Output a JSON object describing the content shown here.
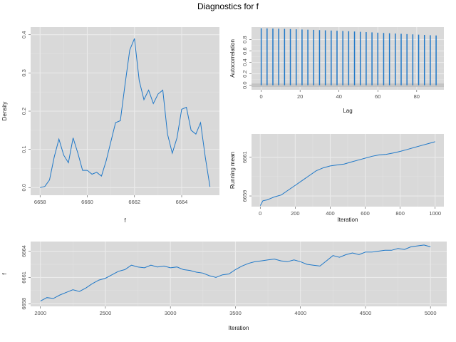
{
  "figure": {
    "title": "Diagnostics for f"
  },
  "colors": {
    "line": "#1f78c8",
    "panel": "#d9d9d9",
    "grid": "#ebebeb",
    "band": "#bdbdbd"
  },
  "chart_data": [
    {
      "id": "density",
      "type": "line",
      "title": "",
      "xlabel": "f",
      "ylabel": "Density",
      "xlim": [
        6657.6,
        6665.6
      ],
      "ylim": [
        -0.02,
        0.42
      ],
      "xticks": [
        6658,
        6660,
        6662,
        6664
      ],
      "yticks": [
        0.0,
        0.1,
        0.2,
        0.3,
        0.4
      ],
      "x": [
        6658.0,
        6658.2,
        6658.4,
        6658.6,
        6658.8,
        6659.0,
        6659.2,
        6659.4,
        6659.6,
        6659.8,
        6660.0,
        6660.2,
        6660.4,
        6660.6,
        6660.8,
        6661.0,
        6661.2,
        6661.4,
        6661.6,
        6661.8,
        6662.0,
        6662.2,
        6662.4,
        6662.6,
        6662.8,
        6663.0,
        6663.2,
        6663.4,
        6663.6,
        6663.8,
        6664.0,
        6664.2,
        6664.4,
        6664.6,
        6664.8,
        6665.0,
        6665.2
      ],
      "y": [
        0.0,
        0.003,
        0.02,
        0.08,
        0.127,
        0.085,
        0.065,
        0.13,
        0.09,
        0.045,
        0.045,
        0.035,
        0.04,
        0.03,
        0.07,
        0.12,
        0.17,
        0.175,
        0.27,
        0.36,
        0.39,
        0.28,
        0.23,
        0.255,
        0.22,
        0.245,
        0.255,
        0.14,
        0.09,
        0.13,
        0.205,
        0.21,
        0.15,
        0.14,
        0.17,
        0.08,
        0.002
      ]
    },
    {
      "id": "acf",
      "type": "bar",
      "title": "",
      "xlabel": "Lag",
      "ylabel": "Autocorrelation",
      "xlim": [
        -5,
        94
      ],
      "ylim": [
        -0.08,
        1.02
      ],
      "xticks": [
        0,
        20,
        40,
        60,
        80
      ],
      "yticks": [
        0.0,
        0.2,
        0.4,
        0.6,
        0.8
      ],
      "lags": [
        0,
        3,
        6,
        9,
        12,
        15,
        18,
        21,
        24,
        27,
        30,
        33,
        36,
        39,
        42,
        45,
        48,
        51,
        54,
        57,
        60,
        63,
        66,
        69,
        72,
        75,
        78,
        81,
        84,
        87,
        90
      ],
      "values": [
        1.0,
        0.997,
        0.994,
        0.991,
        0.988,
        0.985,
        0.981,
        0.977,
        0.974,
        0.971,
        0.967,
        0.963,
        0.959,
        0.955,
        0.951,
        0.947,
        0.942,
        0.937,
        0.932,
        0.927,
        0.922,
        0.917,
        0.912,
        0.907,
        0.902,
        0.897,
        0.892,
        0.887,
        0.882,
        0.877,
        0.873
      ],
      "band": [
        -0.03,
        0.03
      ]
    },
    {
      "id": "running-mean",
      "type": "line",
      "title": "",
      "xlabel": "Iteration",
      "ylabel": "Running mean",
      "xlim": [
        -50,
        1050
      ],
      "ylim": [
        6658.45,
        6662.2
      ],
      "xticks": [
        0,
        200,
        400,
        600,
        800,
        1000
      ],
      "yticks": [
        6659,
        6661
      ],
      "x": [
        0,
        15,
        40,
        80,
        120,
        160,
        200,
        240,
        280,
        320,
        360,
        400,
        440,
        480,
        520,
        560,
        600,
        640,
        680,
        720,
        760,
        800,
        840,
        880,
        920,
        960,
        1000
      ],
      "y": [
        6658.5,
        6658.75,
        6658.8,
        6658.95,
        6659.05,
        6659.3,
        6659.55,
        6659.8,
        6660.05,
        6660.3,
        6660.45,
        6660.55,
        6660.6,
        6660.65,
        6660.75,
        6660.85,
        6660.95,
        6661.05,
        6661.12,
        6661.15,
        6661.22,
        6661.3,
        6661.4,
        6661.5,
        6661.6,
        6661.7,
        6661.8
      ]
    },
    {
      "id": "trace",
      "type": "line",
      "title": "",
      "xlabel": "Iteration",
      "ylabel": "f",
      "xlim": [
        1925,
        5125
      ],
      "ylim": [
        6657.7,
        6665.1
      ],
      "xticks": [
        2000,
        2500,
        3000,
        3500,
        4000,
        4500,
        5000
      ],
      "yticks": [
        6658,
        6661,
        6664
      ],
      "x": [
        2000,
        2050,
        2100,
        2150,
        2200,
        2250,
        2300,
        2350,
        2400,
        2450,
        2500,
        2550,
        2600,
        2650,
        2700,
        2750,
        2800,
        2850,
        2900,
        2950,
        3000,
        3050,
        3100,
        3150,
        3200,
        3250,
        3300,
        3350,
        3400,
        3450,
        3500,
        3550,
        3600,
        3650,
        3700,
        3750,
        3800,
        3850,
        3900,
        3950,
        4000,
        4050,
        4100,
        4150,
        4200,
        4250,
        4300,
        4350,
        4400,
        4450,
        4500,
        4550,
        4600,
        4650,
        4700,
        4750,
        4800,
        4850,
        4900,
        4950,
        5000
      ],
      "y": [
        6658.3,
        6658.7,
        6658.6,
        6659.0,
        6659.3,
        6659.6,
        6659.4,
        6659.8,
        6660.3,
        6660.7,
        6660.9,
        6661.3,
        6661.7,
        6661.9,
        6662.4,
        6662.2,
        6662.1,
        6662.4,
        6662.2,
        6662.3,
        6662.1,
        6662.2,
        6661.9,
        6661.8,
        6661.6,
        6661.5,
        6661.2,
        6661.0,
        6661.3,
        6661.4,
        6661.9,
        6662.3,
        6662.6,
        6662.8,
        6662.9,
        6663.0,
        6663.1,
        6662.9,
        6662.8,
        6663.0,
        6662.8,
        6662.5,
        6662.4,
        6662.3,
        6662.9,
        6663.5,
        6663.3,
        6663.6,
        6663.8,
        6663.6,
        6663.9,
        6663.9,
        6664.0,
        6664.1,
        6664.1,
        6664.3,
        6664.2,
        6664.5,
        6664.6,
        6664.7,
        6664.5
      ]
    }
  ]
}
